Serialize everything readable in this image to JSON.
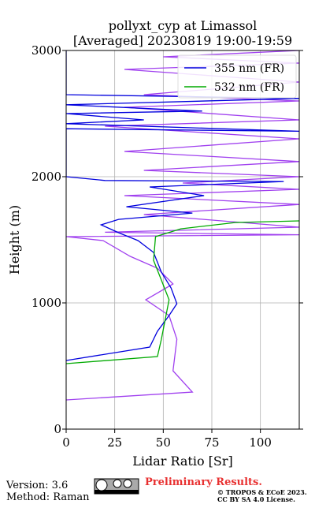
{
  "chart_data": {
    "type": "line",
    "title": "pollyxt_cyp at Limassol",
    "subtitle": "[Averaged] 20230819 19:00-19:59",
    "x_label": "Lidar Ratio [Sr]",
    "y_label": "Height (m)",
    "xlim": [
      0,
      120
    ],
    "xticks": [
      0,
      25,
      50,
      75,
      100
    ],
    "ylim": [
      0,
      3000
    ],
    "yticks": [
      0,
      1000,
      2000,
      3000
    ],
    "grid": true,
    "legend": "upper right",
    "series": [
      {
        "color": "#a040ef",
        "y": [
          231,
          294,
          462,
          712,
          900,
          1025,
          1150,
          1275,
          1369,
          1494,
          1525,
          1540,
          1560,
          1600,
          1700,
          1780,
          1850,
          1900,
          1950,
          2000,
          2050,
          2120,
          2200,
          2300,
          2400,
          2450,
          2550,
          2600,
          2650,
          2750,
          2850,
          2900,
          2950,
          3000
        ],
        "values": [
          0,
          65,
          55,
          57,
          53,
          41,
          55,
          47,
          33,
          19,
          0,
          120,
          20,
          120,
          40,
          120,
          30,
          120,
          60,
          120,
          40,
          120,
          30,
          120,
          20,
          120,
          30,
          120,
          40,
          120,
          30,
          120,
          50,
          120
        ]
      },
      {
        "name": "355 nm (FR)",
        "color": "#0000dd",
        "y": [
          544,
          650,
          775,
          900,
          994,
          1119,
          1244,
          1400,
          1494,
          1556,
          1619,
          1662,
          1712,
          1762,
          1850,
          1919,
          1962,
          1970,
          2000,
          2380,
          2360,
          2420,
          2450,
          2500,
          2520,
          2570,
          2620,
          2650,
          3000
        ],
        "values": [
          0,
          43,
          47,
          53,
          57,
          54,
          49,
          45,
          37,
          27,
          18,
          27,
          65,
          31,
          71,
          43,
          112,
          20,
          0,
          0,
          120,
          0,
          40,
          0,
          70,
          0,
          120,
          0,
          0
        ]
      },
      {
        "name": "532 nm (FR)",
        "color": "#00aa00",
        "y": [
          519,
          575,
          712,
          869,
          1025,
          1181,
          1337,
          1525,
          1587,
          1637,
          1650
        ],
        "values": [
          0,
          47,
          49,
          51,
          53,
          49,
          45,
          46,
          59,
          87,
          120
        ]
      }
    ],
    "footer": {
      "version": "Version: 3.6",
      "method": "Method: Raman",
      "status": "Preliminary Results.",
      "copyright": "© TROPOS & ECoE 2023.",
      "license": "CC BY SA 4.0 License."
    }
  }
}
